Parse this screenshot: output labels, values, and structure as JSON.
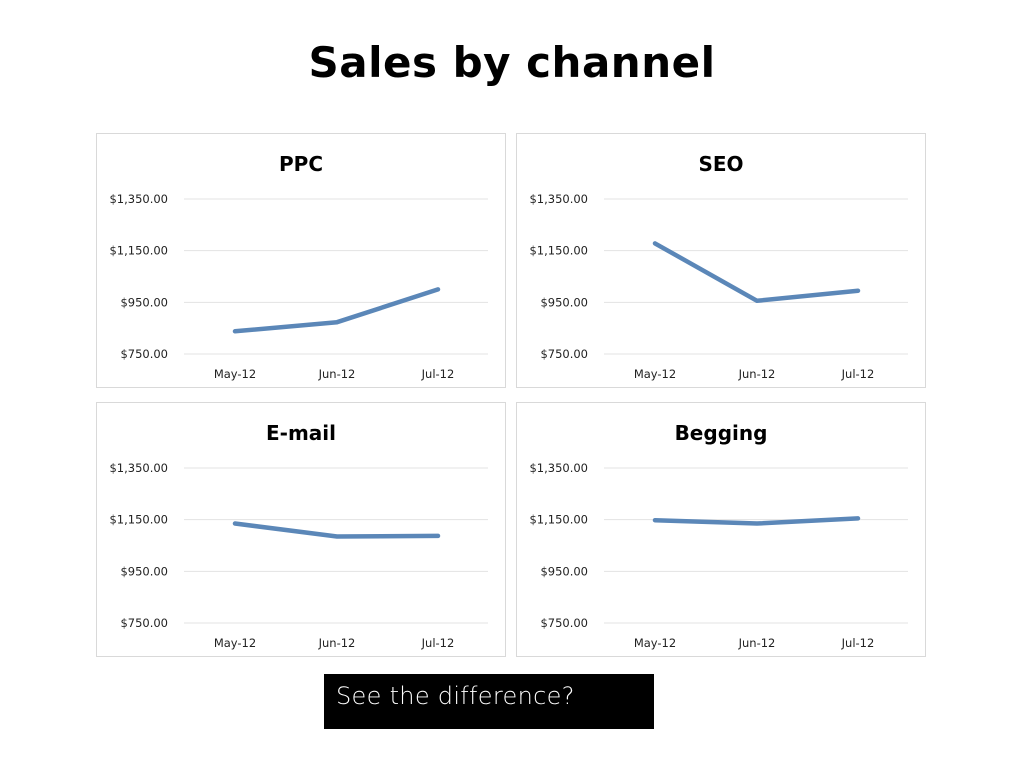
{
  "slide": {
    "title": "Sales by channel",
    "caption": "See the difference?"
  },
  "style": {
    "line_color": "#5b87b8",
    "grid_color": "#e3e3e3",
    "panel_border": "#d9d9d9",
    "caption_bg": "#000000",
    "caption_fg": "#ffffff"
  },
  "axis": {
    "y_ticks": [
      "$1,350.00",
      "$1,150.00",
      "$950.00",
      "$750.00"
    ],
    "y_values": [
      1350,
      1150,
      950,
      750
    ],
    "x_ticks": [
      "May-12",
      "Jun-12",
      "Jul-12"
    ]
  },
  "chart_data": [
    {
      "type": "line",
      "title": "PPC",
      "categories": [
        "May-12",
        "Jun-12",
        "Jul-12"
      ],
      "values": [
        838,
        873,
        1000
      ],
      "xlabel": "",
      "ylabel": "",
      "ylim": [
        750,
        1350
      ],
      "yticks": [
        750,
        950,
        1150,
        1350
      ],
      "grid": true,
      "legend": false
    },
    {
      "type": "line",
      "title": "SEO",
      "categories": [
        "May-12",
        "Jun-12",
        "Jul-12"
      ],
      "values": [
        1178,
        956,
        995
      ],
      "xlabel": "",
      "ylabel": "",
      "ylim": [
        750,
        1350
      ],
      "yticks": [
        750,
        950,
        1150,
        1350
      ],
      "grid": true,
      "legend": false
    },
    {
      "type": "line",
      "title": "E-mail",
      "categories": [
        "May-12",
        "Jun-12",
        "Jul-12"
      ],
      "values": [
        1135,
        1085,
        1087
      ],
      "xlabel": "",
      "ylabel": "",
      "ylim": [
        750,
        1350
      ],
      "yticks": [
        750,
        950,
        1150,
        1350
      ],
      "grid": true,
      "legend": false
    },
    {
      "type": "line",
      "title": "Begging",
      "categories": [
        "May-12",
        "Jun-12",
        "Jul-12"
      ],
      "values": [
        1148,
        1135,
        1155
      ],
      "xlabel": "",
      "ylabel": "",
      "ylim": [
        750,
        1350
      ],
      "yticks": [
        750,
        950,
        1150,
        1350
      ],
      "grid": true,
      "legend": false
    }
  ]
}
